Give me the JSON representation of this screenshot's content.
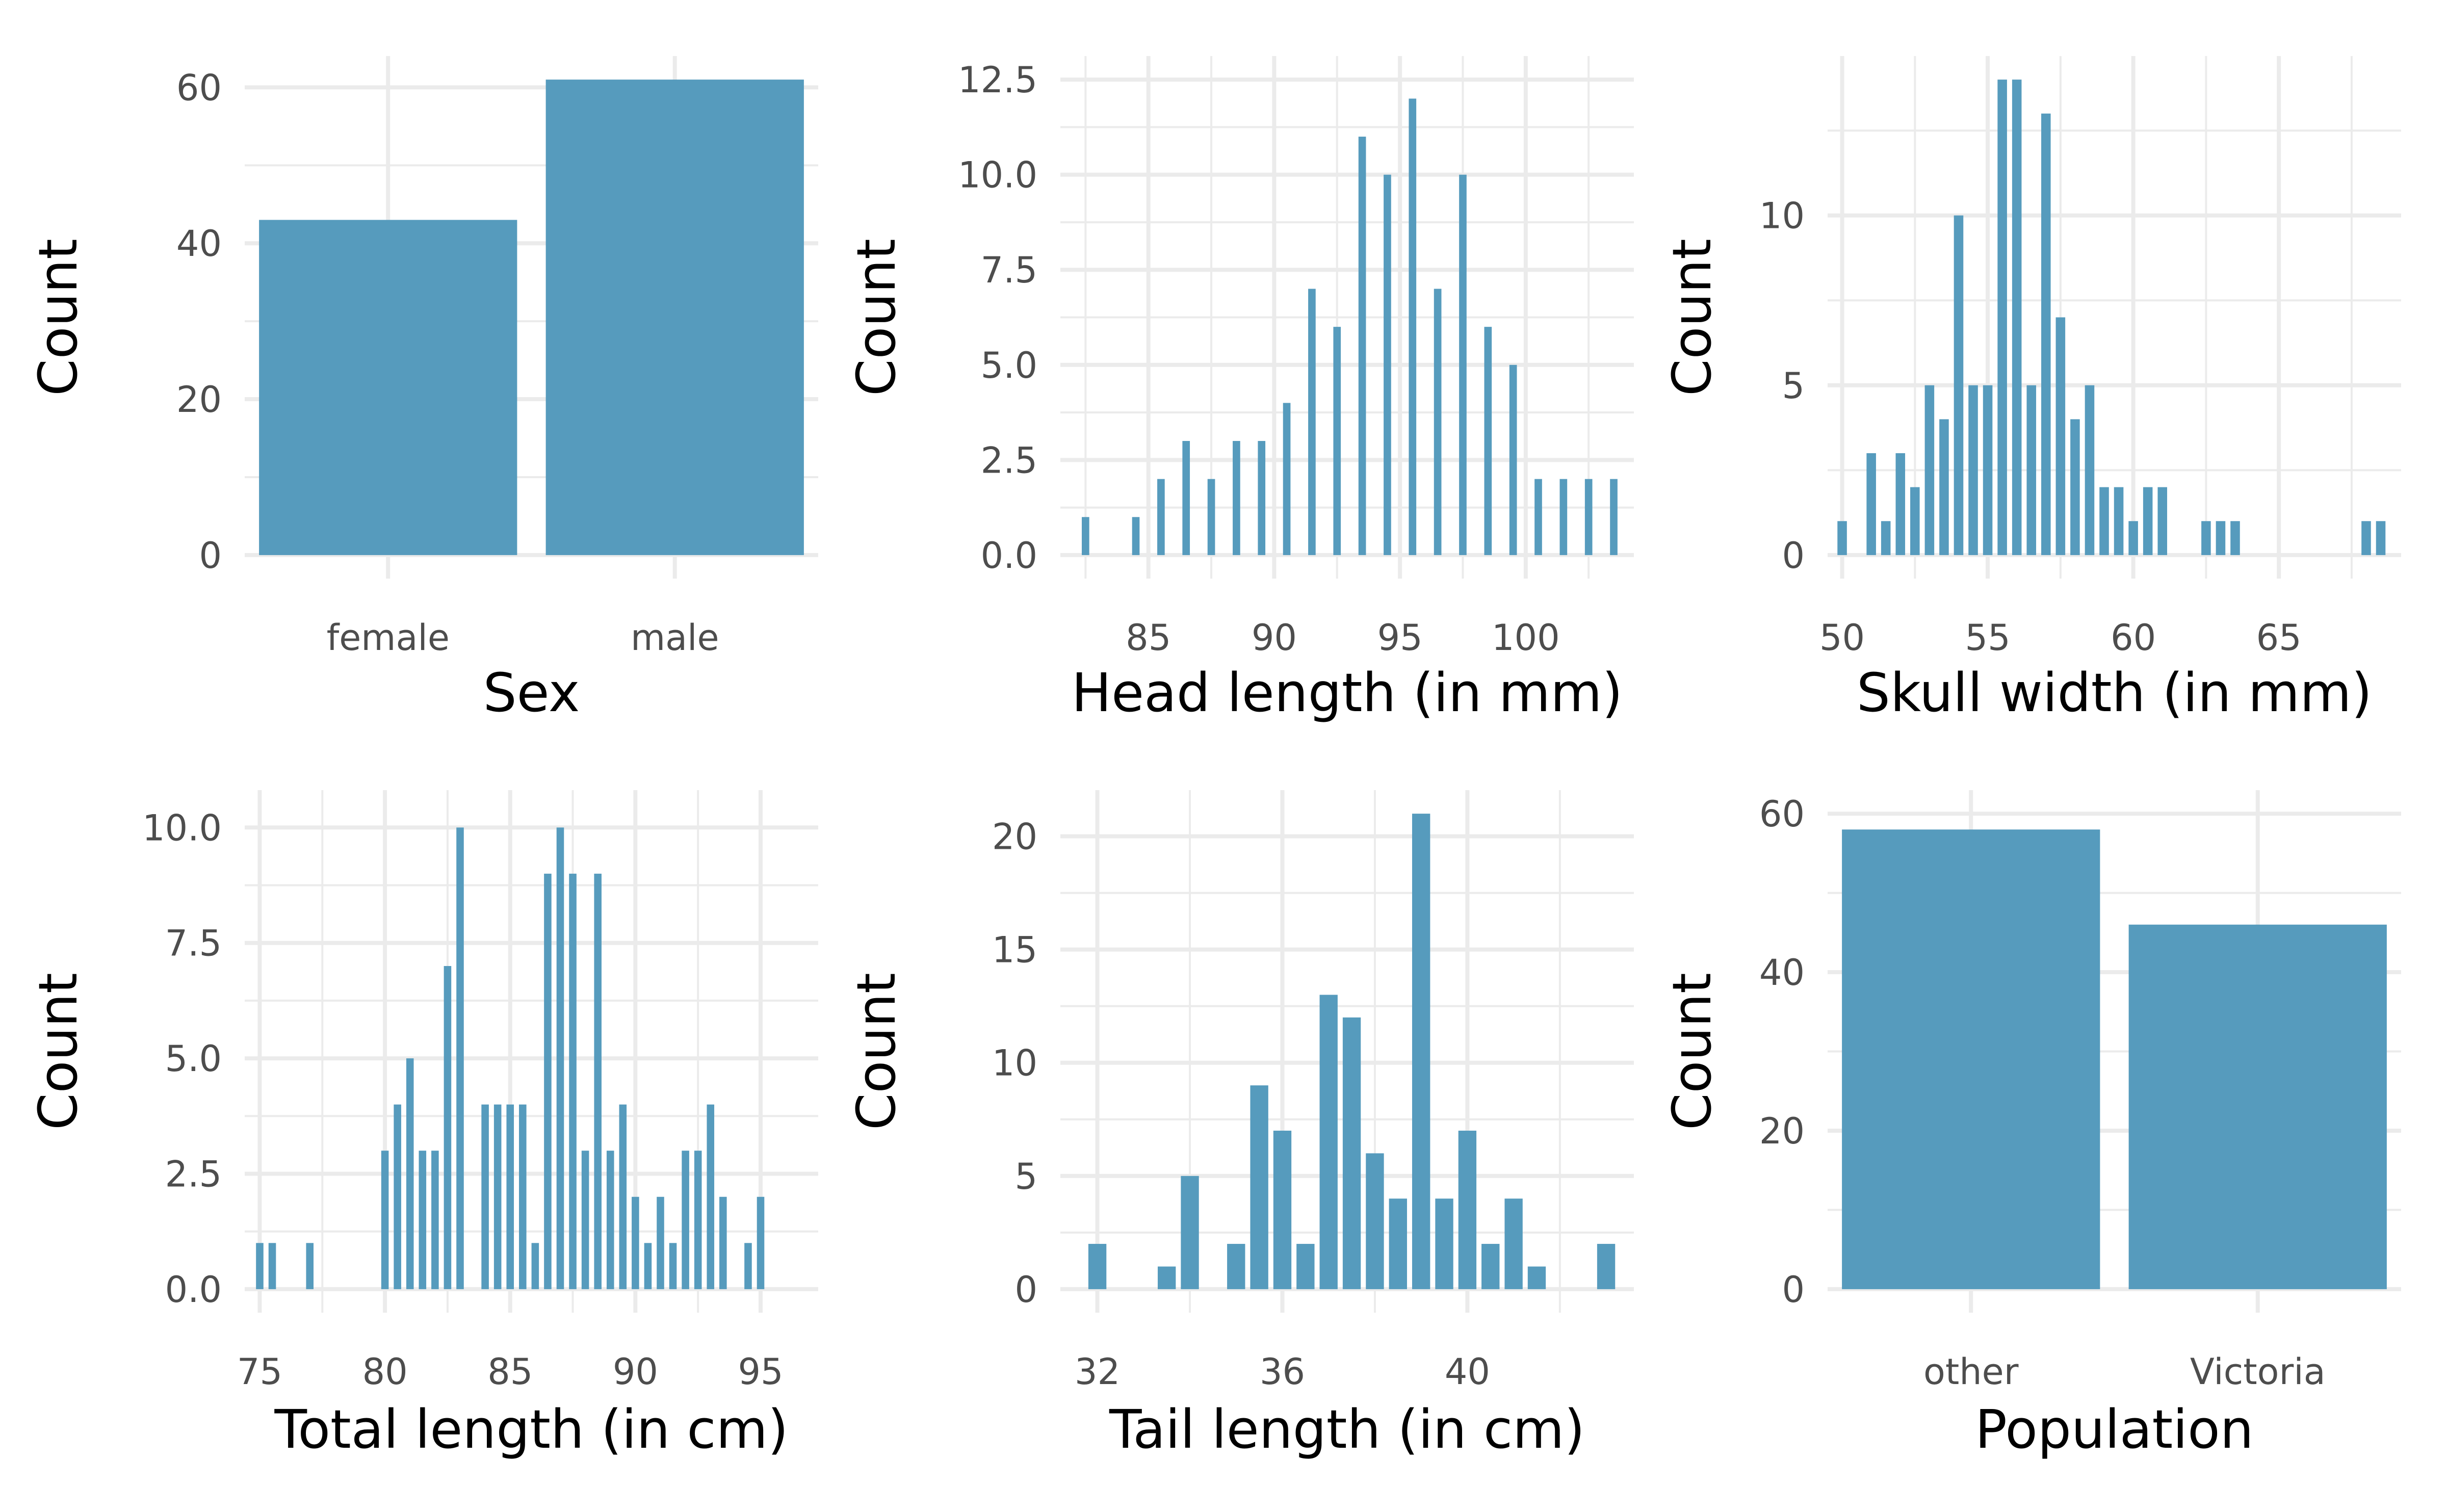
{
  "figure": {
    "bar_color": "#569bbd",
    "grid_color": "#ebebeb"
  },
  "chart_data": [
    {
      "type": "bar",
      "xlabel": "Sex",
      "ylabel": "Count",
      "categories": [
        "female",
        "male"
      ],
      "values": [
        43,
        61
      ],
      "ylim": [
        0,
        61
      ],
      "yticks": [
        0,
        20,
        40,
        60
      ],
      "ytick_labels": [
        "0",
        "20",
        "40",
        "60"
      ],
      "grid": true
    },
    {
      "type": "bar",
      "histogram": true,
      "xlabel": "Head length (in mm)",
      "ylabel": "Count",
      "x": [
        82.5,
        84.5,
        85.5,
        86.5,
        87.5,
        88.5,
        89.5,
        90.5,
        91.5,
        92.5,
        93.5,
        94.5,
        95.5,
        96.5,
        97.5,
        98.5,
        99.5,
        100.5,
        101.5,
        102.5,
        103.5
      ],
      "values": [
        1,
        1,
        2,
        3,
        2,
        3,
        3,
        4,
        7,
        6,
        11,
        10,
        12,
        7,
        10,
        6,
        5,
        2,
        2,
        2,
        2
      ],
      "ylim": [
        0,
        12.5
      ],
      "yticks": [
        0,
        2.5,
        5,
        7.5,
        10,
        12.5
      ],
      "ytick_labels": [
        "0.0",
        "2.5",
        "5.0",
        "7.5",
        "10.0",
        "12.5"
      ],
      "xticks": [
        85,
        90,
        95,
        100
      ],
      "xtick_labels": [
        "85",
        "90",
        "95",
        "100"
      ],
      "grid": true
    },
    {
      "type": "bar",
      "histogram": true,
      "xlabel": "Skull width (in mm)",
      "ylabel": "Count",
      "x": [
        50,
        51,
        51.5,
        52,
        52.5,
        53,
        53.5,
        54,
        54.5,
        55,
        55.5,
        56,
        56.5,
        57,
        57.5,
        58,
        58.5,
        59,
        59.5,
        60,
        60.5,
        61,
        62.5,
        63,
        63.5,
        68,
        68.5
      ],
      "values": [
        1,
        3,
        1,
        3,
        2,
        5,
        4,
        10,
        5,
        5,
        14,
        14,
        5,
        13,
        7,
        4,
        5,
        2,
        2,
        1,
        2,
        2,
        1,
        1,
        1,
        1,
        1
      ],
      "ylim": [
        0,
        14
      ],
      "yticks": [
        0,
        5,
        10
      ],
      "ytick_labels": [
        "0",
        "5",
        "10"
      ],
      "xticks": [
        50,
        55,
        60,
        65
      ],
      "xtick_labels": [
        "50",
        "55",
        "60",
        "65"
      ],
      "grid": true
    },
    {
      "type": "bar",
      "histogram": true,
      "xlabel": "Total length (in cm)",
      "ylabel": "Count",
      "x": [
        75,
        75.5,
        77,
        80,
        80.5,
        81,
        81.5,
        82,
        82.5,
        83,
        84,
        84.5,
        85,
        85.5,
        86,
        86.5,
        87,
        87.5,
        88,
        88.5,
        89,
        89.5,
        90,
        90.5,
        91,
        91.5,
        92,
        92.5,
        93,
        93.5,
        94.5,
        95
      ],
      "values": [
        1,
        1,
        1,
        3,
        4,
        5,
        3,
        3,
        7,
        10,
        4,
        4,
        4,
        4,
        1,
        9,
        10,
        9,
        3,
        9,
        3,
        4,
        2,
        1,
        2,
        1,
        3,
        3,
        4,
        2,
        1,
        2
      ],
      "ylim": [
        0,
        10.3
      ],
      "yticks": [
        0,
        2.5,
        5,
        7.5,
        10
      ],
      "ytick_labels": [
        "0.0",
        "2.5",
        "5.0",
        "7.5",
        "10.0"
      ],
      "xticks": [
        75,
        80,
        85,
        90,
        95
      ],
      "xtick_labels": [
        "75",
        "80",
        "85",
        "90",
        "95"
      ],
      "grid": true
    },
    {
      "type": "bar",
      "histogram": true,
      "xlabel": "Tail length (in cm)",
      "ylabel": "Count",
      "x": [
        32,
        33.5,
        34,
        35,
        35.5,
        36,
        36.5,
        37,
        37.5,
        38,
        38.5,
        39,
        39.5,
        40,
        40.5,
        41,
        41.5,
        43
      ],
      "values": [
        2,
        1,
        5,
        2,
        9,
        7,
        2,
        13,
        12,
        6,
        4,
        21,
        4,
        7,
        2,
        4,
        1,
        2
      ],
      "ylim": [
        0,
        21
      ],
      "yticks": [
        0,
        5,
        10,
        15,
        20
      ],
      "ytick_labels": [
        "0",
        "5",
        "10",
        "15",
        "20"
      ],
      "xticks": [
        32,
        36,
        40
      ],
      "xtick_labels": [
        "32",
        "36",
        "40"
      ],
      "grid": true
    },
    {
      "type": "bar",
      "xlabel": "Population",
      "ylabel": "Count",
      "categories": [
        "other",
        "Victoria"
      ],
      "values": [
        58,
        46
      ],
      "ylim": [
        0,
        60
      ],
      "yticks": [
        0,
        20,
        40,
        60
      ],
      "ytick_labels": [
        "0",
        "20",
        "40",
        "60"
      ],
      "grid": true
    }
  ]
}
